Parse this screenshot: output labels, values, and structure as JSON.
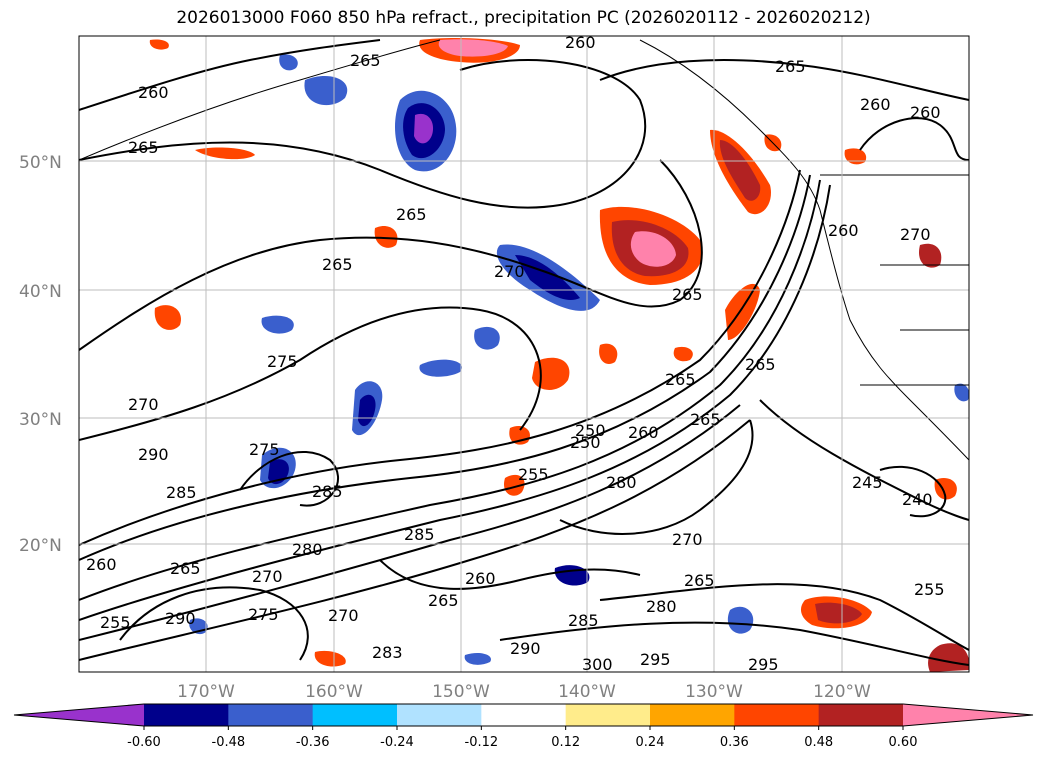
{
  "title": "2026013000 F060 850 hPa refract., precipitation PC (2026020112 - 2026020212)",
  "lat_labels": [
    "50°N",
    "40°N",
    "30°N",
    "20°N"
  ],
  "lon_labels": [
    "170°W",
    "160°W",
    "150°W",
    "140°W",
    "130°W",
    "120°W"
  ],
  "colorbar": {
    "ticks": [
      "-0.60",
      "-0.48",
      "-0.36",
      "-0.24",
      "-0.12",
      "0.12",
      "0.24",
      "0.36",
      "0.48",
      "0.60"
    ],
    "colors": [
      "#9932cc",
      "#00008b",
      "#3a5fcd",
      "#00bfff",
      "#b0e2ff",
      "#ffffff",
      "#ffec8b",
      "#ffa500",
      "#ff4500",
      "#b22222",
      "#ff82ab"
    ]
  },
  "contour_labels": [
    "260",
    "265",
    "260",
    "265",
    "260",
    "260",
    "265",
    "265",
    "265",
    "270",
    "265",
    "275",
    "270",
    "290",
    "275",
    "285",
    "285",
    "285",
    "280",
    "265",
    "260",
    "270",
    "255",
    "290",
    "275",
    "270",
    "283",
    "290",
    "300",
    "295",
    "295",
    "285",
    "280",
    "265",
    "270",
    "260",
    "265",
    "255",
    "250",
    "280",
    "260",
    "265",
    "265",
    "265",
    "245",
    "240",
    "255",
    "260",
    "270",
    "250"
  ]
}
